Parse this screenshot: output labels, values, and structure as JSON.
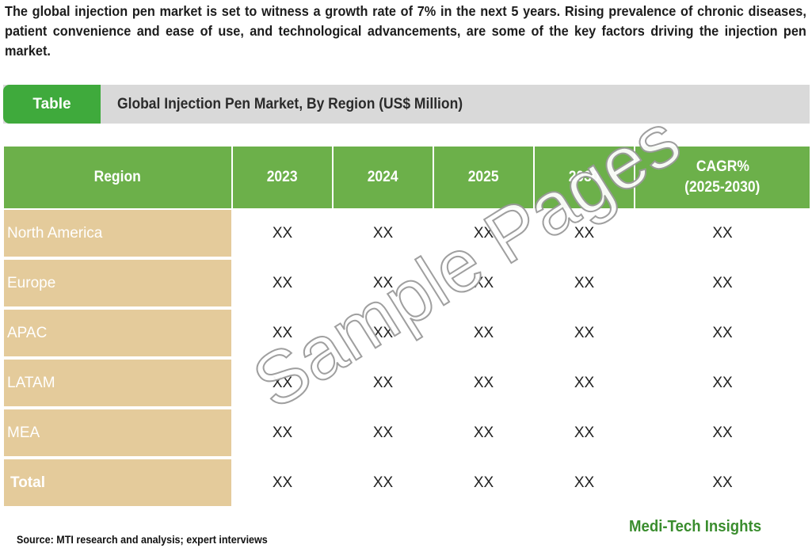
{
  "intro_text": "The global injection pen market is set to witness a growth rate of 7% in the next 5 years. Rising prevalence of chronic diseases, patient convenience and ease of use, and technological advancements, are some of the key factors driving the injection pen market.",
  "caption": {
    "tag": "Table",
    "title": "Global Injection Pen Market, By Region (US$ Million)"
  },
  "table": {
    "headers": {
      "region": "Region",
      "y2023": "2023",
      "y2024": "2024",
      "y2025": "2025",
      "y2030": "2030",
      "cagr_line1": "CAGR%",
      "cagr_line2": "(2025-2030)"
    },
    "rows": [
      {
        "region": "North America",
        "v2023": "XX",
        "v2024": "XX",
        "v2025": "XX",
        "v2030": "XX",
        "cagr": "XX"
      },
      {
        "region": "Europe",
        "v2023": "XX",
        "v2024": "XX",
        "v2025": "XX",
        "v2030": "XX",
        "cagr": "XX"
      },
      {
        "region": "APAC",
        "v2023": "XX",
        "v2024": "XX",
        "v2025": "XX",
        "v2030": "XX",
        "cagr": "XX"
      },
      {
        "region": "LATAM",
        "v2023": "XX",
        "v2024": "XX",
        "v2025": "XX",
        "v2030": "XX",
        "cagr": "XX"
      },
      {
        "region": "MEA",
        "v2023": "XX",
        "v2024": "XX",
        "v2025": "XX",
        "v2030": "XX",
        "cagr": "XX"
      },
      {
        "region": "Total",
        "v2023": "XX",
        "v2024": "XX",
        "v2025": "XX",
        "v2030": "XX",
        "cagr": "XX"
      }
    ]
  },
  "watermark": "Sample Pages",
  "source": "Source: MTI research and analysis; expert interviews",
  "brand": "Medi-Tech Insights",
  "colors": {
    "tag_green": "#3faa3c",
    "header_green": "#6cb04a",
    "region_tan": "#e4cb9b",
    "caption_gray": "#d9d9d9",
    "brand_green": "#3a8d2e"
  }
}
